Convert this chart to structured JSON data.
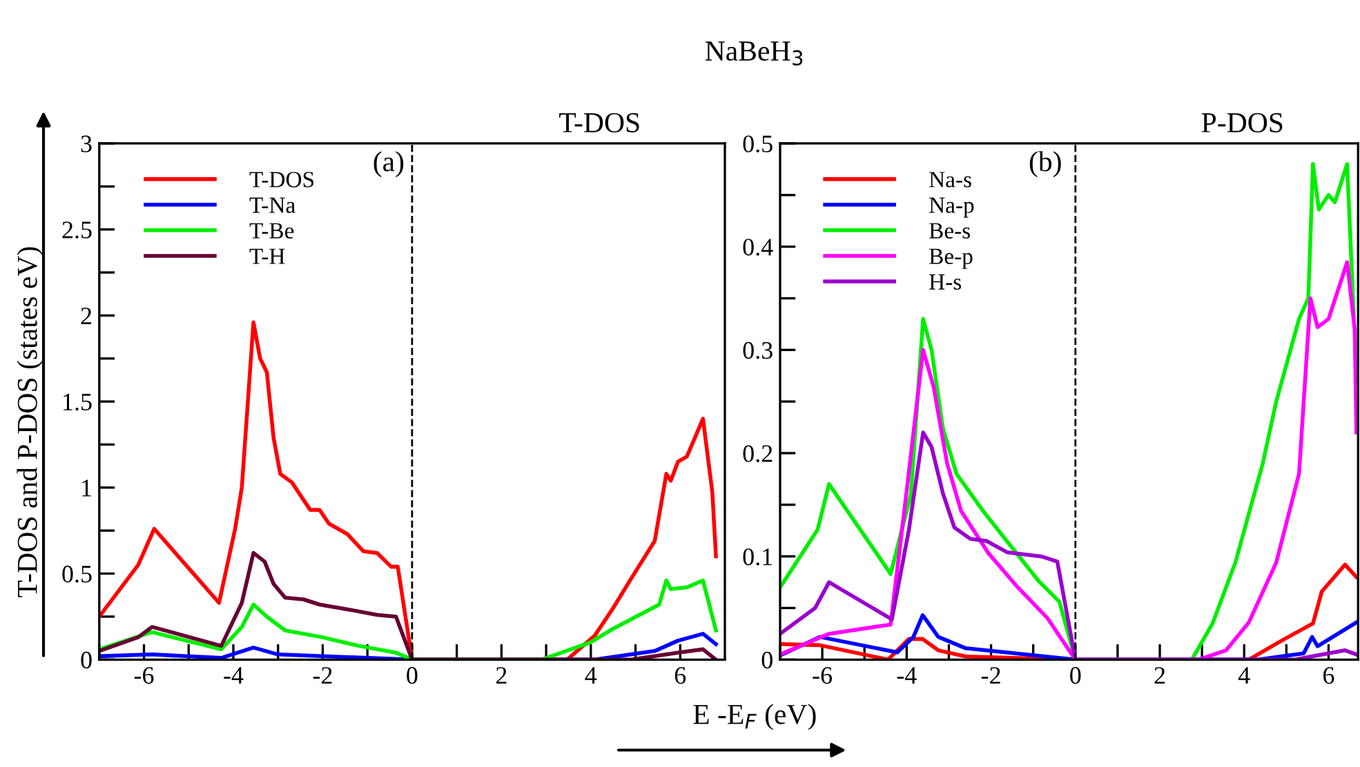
{
  "chart_data": [
    {
      "type": "line",
      "title": "NaBeH$_{3}$",
      "subtitle": "T-DOS",
      "xlabel": "E -E$_{F}$ (eV)",
      "ylabel": "T-DOS and P-DOS (states eV)",
      "annotations": [
        "(a)"
      ],
      "xlim": [
        -7,
        7
      ],
      "ylim": [
        0,
        3
      ],
      "xticks": [
        {
          "value": -7,
          "label": null
        },
        -6,
        {
          "value": -5,
          "label": null
        },
        -4,
        {
          "value": -3,
          "label": null
        },
        -2,
        {
          "value": -1,
          "label": null
        },
        0,
        {
          "value": 1,
          "label": null
        },
        2,
        {
          "value": 3,
          "label": null
        },
        4,
        {
          "value": 5,
          "label": null
        },
        6
      ],
      "yticks": [
        0,
        {
          "value": 0.25,
          "label": null
        },
        0.5,
        {
          "value": 0.75,
          "label": null
        },
        1,
        {
          "value": 1.25,
          "label": null
        },
        1.5,
        {
          "value": 1.75,
          "label": null
        },
        2,
        {
          "value": 2.25,
          "label": null
        },
        2.5,
        {
          "value": 2.75,
          "label": null
        },
        3
      ],
      "ref_lines": [
        {
          "axis": "x",
          "value": 0,
          "color": "#000000",
          "line_style": "dashed"
        }
      ],
      "legend": "top left",
      "grid": false,
      "marker": "none",
      "line_style": "solid",
      "series": [
        {
          "name": "T-DOS",
          "color": "#ff0000",
          "x": [
            -7,
            -6.13,
            -5.77,
            -4.32,
            -3.96,
            -3.81,
            -3.55,
            -3.4,
            -3.25,
            -3.1,
            -2.95,
            -2.69,
            -2.28,
            -2.07,
            -1.86,
            -1.45,
            -1.09,
            -0.78,
            -0.47,
            -0.32,
            0,
            3.47,
            4.09,
            4.5,
            4.9,
            5.43,
            5.69,
            5.79,
            5.95,
            6.15,
            6.51,
            6.72,
            6.8
          ],
          "values": [
            0.25,
            0.55,
            0.76,
            0.33,
            0.76,
            1.0,
            1.96,
            1.75,
            1.67,
            1.29,
            1.08,
            1.03,
            0.87,
            0.87,
            0.79,
            0.73,
            0.63,
            0.62,
            0.54,
            0.54,
            0,
            0,
            0.14,
            0.3,
            0.47,
            0.69,
            1.08,
            1.04,
            1.15,
            1.18,
            1.4,
            0.97,
            0.6
          ]
        },
        {
          "name": "T-Na",
          "color": "#0000ff",
          "x": [
            -7,
            -5.82,
            -4.27,
            -3.55,
            -3.0,
            0,
            4.09,
            5.43,
            5.95,
            6.51,
            6.8
          ],
          "values": [
            0.02,
            0.03,
            0.01,
            0.07,
            0.03,
            0,
            0,
            0.05,
            0.11,
            0.15,
            0.09
          ]
        },
        {
          "name": "T-Be",
          "color": "#00ee00",
          "x": [
            -7,
            -5.82,
            -4.27,
            -3.81,
            -3.55,
            -3.25,
            -2.84,
            -2.01,
            -1.19,
            -0.36,
            0,
            2.9,
            3.99,
            4.5,
            5.53,
            5.69,
            5.79,
            6.15,
            6.51,
            6.67,
            6.8
          ],
          "values": [
            0.06,
            0.16,
            0.06,
            0.19,
            0.32,
            0.25,
            0.17,
            0.13,
            0.08,
            0.04,
            0,
            0,
            0.1,
            0.18,
            0.32,
            0.46,
            0.41,
            0.42,
            0.46,
            0.3,
            0.17
          ]
        },
        {
          "name": "T-H",
          "color": "#660033",
          "x": [
            -7,
            -6.13,
            -5.82,
            -4.27,
            -3.81,
            -3.55,
            -3.3,
            -3.1,
            -2.84,
            -2.43,
            -2.07,
            -1.4,
            -0.78,
            -0.36,
            0,
            4.9,
            5.95,
            6.51,
            6.8
          ],
          "values": [
            0.05,
            0.13,
            0.19,
            0.08,
            0.33,
            0.62,
            0.57,
            0.44,
            0.36,
            0.35,
            0.32,
            0.29,
            0.26,
            0.25,
            0,
            0,
            0.04,
            0.06,
            0
          ]
        }
      ]
    },
    {
      "type": "line",
      "subtitle": "P-DOS",
      "annotations": [
        "(b)"
      ],
      "xlim": [
        -7,
        6.7
      ],
      "ylim": [
        0,
        0.5
      ],
      "xticks": [
        {
          "value": -7,
          "label": null
        },
        -6,
        {
          "value": -5,
          "label": null
        },
        -4,
        {
          "value": -3,
          "label": null
        },
        -2,
        {
          "value": -1,
          "label": null
        },
        0,
        {
          "value": 1,
          "label": null
        },
        2,
        {
          "value": 3,
          "label": null
        },
        4,
        {
          "value": 5,
          "label": null
        },
        6
      ],
      "yticks": [
        0,
        {
          "value": 0.05,
          "label": null
        },
        0.1,
        {
          "value": 0.15,
          "label": null
        },
        0.2,
        {
          "value": 0.25,
          "label": null
        },
        0.3,
        {
          "value": 0.35,
          "label": null
        },
        0.4,
        {
          "value": 0.45,
          "label": null
        },
        0.5
      ],
      "ref_lines": [
        {
          "axis": "x",
          "value": 0,
          "color": "#000000",
          "line_style": "dashed"
        }
      ],
      "legend": "top left",
      "grid": false,
      "marker": "none",
      "line_style": "solid",
      "series": [
        {
          "name": "Na-s",
          "color": "#ff0000",
          "x": [
            -7,
            -6.06,
            -4.44,
            -3.95,
            -3.62,
            -3.25,
            -2.6,
            0,
            4.11,
            4.87,
            5.63,
            5.84,
            6.39,
            6.66
          ],
          "values": [
            0.015,
            0.014,
            0,
            0.02,
            0.02,
            0.009,
            0.003,
            0,
            0,
            0.018,
            0.035,
            0.066,
            0.092,
            0.08
          ]
        },
        {
          "name": "Na-p",
          "color": "#0000ff",
          "x": [
            -7,
            -6.06,
            -4.22,
            -3.84,
            -3.62,
            -3.25,
            -2.6,
            0,
            4.33,
            5.41,
            5.61,
            5.74,
            6.66
          ],
          "values": [
            0.004,
            0.022,
            0.007,
            0.022,
            0.043,
            0.022,
            0.011,
            0,
            0,
            0.006,
            0.022,
            0.013,
            0.036
          ]
        },
        {
          "name": "Be-s",
          "color": "#00ee00",
          "x": [
            -7,
            -6.11,
            -5.84,
            -4.38,
            -3.9,
            -3.61,
            -3.41,
            -3.14,
            -2.82,
            -2.17,
            -1.57,
            -0.87,
            -0.38,
            0,
            2.76,
            3.25,
            3.79,
            4.44,
            4.76,
            5.3,
            5.52,
            5.63,
            5.77,
            6.0,
            6.15,
            6.44,
            6.6
          ],
          "values": [
            0.07,
            0.126,
            0.17,
            0.083,
            0.16,
            0.33,
            0.3,
            0.224,
            0.18,
            0.143,
            0.112,
            0.076,
            0.056,
            0,
            0,
            0.035,
            0.094,
            0.19,
            0.25,
            0.33,
            0.35,
            0.48,
            0.436,
            0.45,
            0.443,
            0.48,
            0.33
          ]
        },
        {
          "name": "Be-p",
          "color": "#ff00ff",
          "x": [
            -7,
            -5.84,
            -4.38,
            -4.01,
            -3.61,
            -3.36,
            -3.04,
            -2.71,
            -2.06,
            -1.41,
            -0.66,
            0,
            2.92,
            3.57,
            4.11,
            4.76,
            5.3,
            5.57,
            5.74,
            6.0,
            6.44,
            6.62,
            6.66
          ],
          "values": [
            0.005,
            0.025,
            0.034,
            0.16,
            0.3,
            0.264,
            0.19,
            0.144,
            0.103,
            0.072,
            0.04,
            0,
            0,
            0.009,
            0.036,
            0.094,
            0.18,
            0.35,
            0.322,
            0.33,
            0.385,
            0.32,
            0.22
          ]
        },
        {
          "name": "H-s",
          "color": "#9900cc",
          "x": [
            -7,
            -6.17,
            -5.84,
            -4.35,
            -3.95,
            -3.61,
            -3.41,
            -3.14,
            -2.87,
            -2.49,
            -2.11,
            -1.62,
            -0.81,
            -0.43,
            0,
            5.2,
            6.39,
            6.66
          ],
          "values": [
            0.025,
            0.05,
            0.075,
            0.039,
            0.125,
            0.22,
            0.206,
            0.161,
            0.128,
            0.117,
            0.115,
            0.104,
            0.1,
            0.095,
            0,
            0,
            0.009,
            0.005
          ]
        }
      ]
    }
  ]
}
